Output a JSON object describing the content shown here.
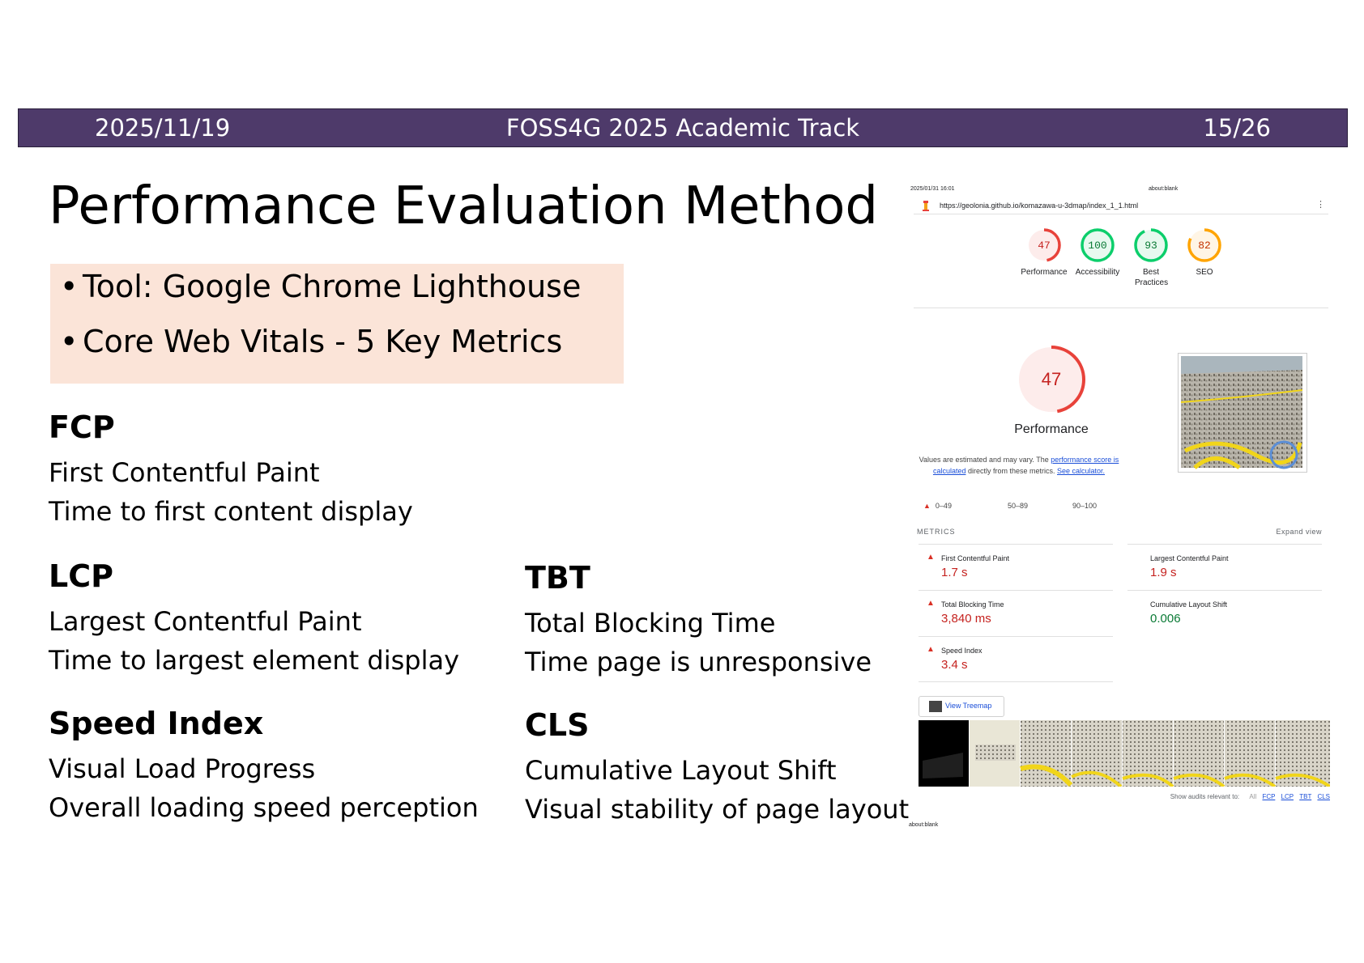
{
  "header": {
    "date": "2025/11/19",
    "event": "FOSS4G 2025 Academic Track",
    "page": "15/26"
  },
  "title": "Performance Evaluation Method",
  "bullets": [
    "Tool: Google Chrome Lighthouse",
    "Core Web Vitals - 5 Key Metrics"
  ],
  "metrics": {
    "fcp": {
      "abbr": "FCP",
      "name": "First Contentful Paint",
      "desc": "Time to first content display"
    },
    "lcp": {
      "abbr": "LCP",
      "name": "Largest Contentful Paint",
      "desc": "Time to largest element display"
    },
    "tbt": {
      "abbr": "TBT",
      "name": "Total Blocking Time",
      "desc": "Time page is unresponsive"
    },
    "si": {
      "abbr": "Speed Index",
      "name": "Visual Load Progress",
      "desc": "Overall loading speed perception"
    },
    "cls": {
      "abbr": "CLS",
      "name": "Cumulative Layout Shift",
      "desc": "Visual stability of page layout"
    }
  },
  "lighthouse": {
    "timestamp": "2025/01/31 16:01",
    "tab_title": "about:blank",
    "url": "https://geolonia.github.io/komazawa-u-3dmap/index_1_1.html",
    "scores": [
      {
        "value": 47,
        "label": "Performance",
        "color": "#e8423a"
      },
      {
        "value": 100,
        "label": "Accessibility",
        "color": "#0cce6b"
      },
      {
        "value": 93,
        "label": "Best Practices",
        "color": "#0cce6b"
      },
      {
        "value": 82,
        "label": "SEO",
        "color": "#ffa400"
      }
    ],
    "main_score": {
      "value": 47,
      "label": "Performance"
    },
    "note": {
      "text1": "Values are estimated and may vary. The ",
      "link1": "performance score is calculated",
      "text2": " directly from these metrics. ",
      "link2": "See calculator."
    },
    "legend": [
      "0–49",
      "50–89",
      "90–100"
    ],
    "metrics_header": "METRICS",
    "expand": "Expand view",
    "values": [
      {
        "name": "First Contentful Paint",
        "value": "1.7 s",
        "status": "red"
      },
      {
        "name": "Largest Contentful Paint",
        "value": "1.9 s",
        "status": "red"
      },
      {
        "name": "Total Blocking Time",
        "value": "3,840 ms",
        "status": "red"
      },
      {
        "name": "Cumulative Layout Shift",
        "value": "0.006",
        "status": "green"
      },
      {
        "name": "Speed Index",
        "value": "3.4 s",
        "status": "red"
      }
    ],
    "treemap": "View Treemap",
    "show_audits": "Show audits relevant to:",
    "filters": [
      "All",
      "FCP",
      "LCP",
      "TBT",
      "CLS"
    ],
    "footer": "about:blank"
  }
}
